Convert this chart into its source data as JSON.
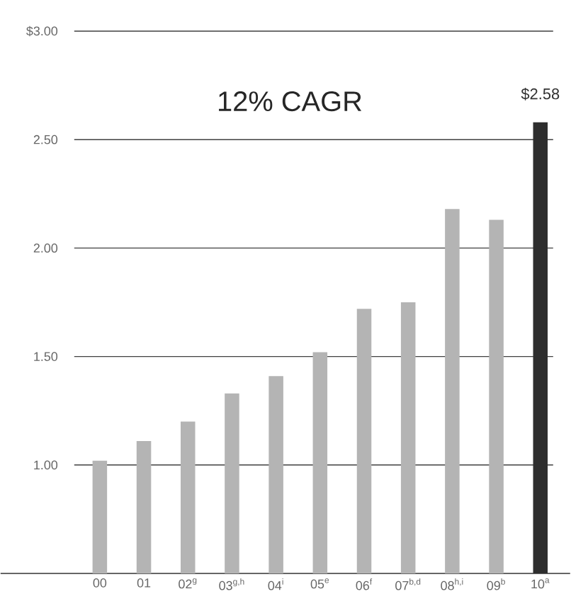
{
  "chart_data": {
    "type": "bar",
    "title": "12% CAGR",
    "categories": [
      "00",
      "01",
      "02$^{g}$",
      "03$^{g,h}$",
      "04$^{i}$",
      "05$^{e}$",
      "06$^{f}$",
      "07$^{b,d}$",
      "08$^{h,i}$",
      "09$^{b}$",
      "10$^{a}$"
    ],
    "values": [
      1.02,
      1.11,
      1.2,
      1.33,
      1.41,
      1.52,
      1.72,
      1.75,
      2.18,
      2.13,
      2.58
    ],
    "colors": [
      "#b4b4b4",
      "#b4b4b4",
      "#b4b4b4",
      "#b4b4b4",
      "#b4b4b4",
      "#b4b4b4",
      "#b4b4b4",
      "#b4b4b4",
      "#b4b4b4",
      "#b4b4b4",
      "#2e2e2e"
    ],
    "value_labels": [
      null,
      null,
      null,
      null,
      null,
      null,
      null,
      null,
      null,
      null,
      "$2.58"
    ],
    "ylim": [
      0.5,
      3.0
    ],
    "yticks": [
      {
        "value": 1.0,
        "label": "1.00"
      },
      {
        "value": 1.5,
        "label": "1.50"
      },
      {
        "value": 2.0,
        "label": "2.00"
      },
      {
        "value": 2.5,
        "label": "2.50"
      },
      {
        "value": 3.0,
        "label": "$3.00"
      }
    ],
    "grid": "y"
  }
}
